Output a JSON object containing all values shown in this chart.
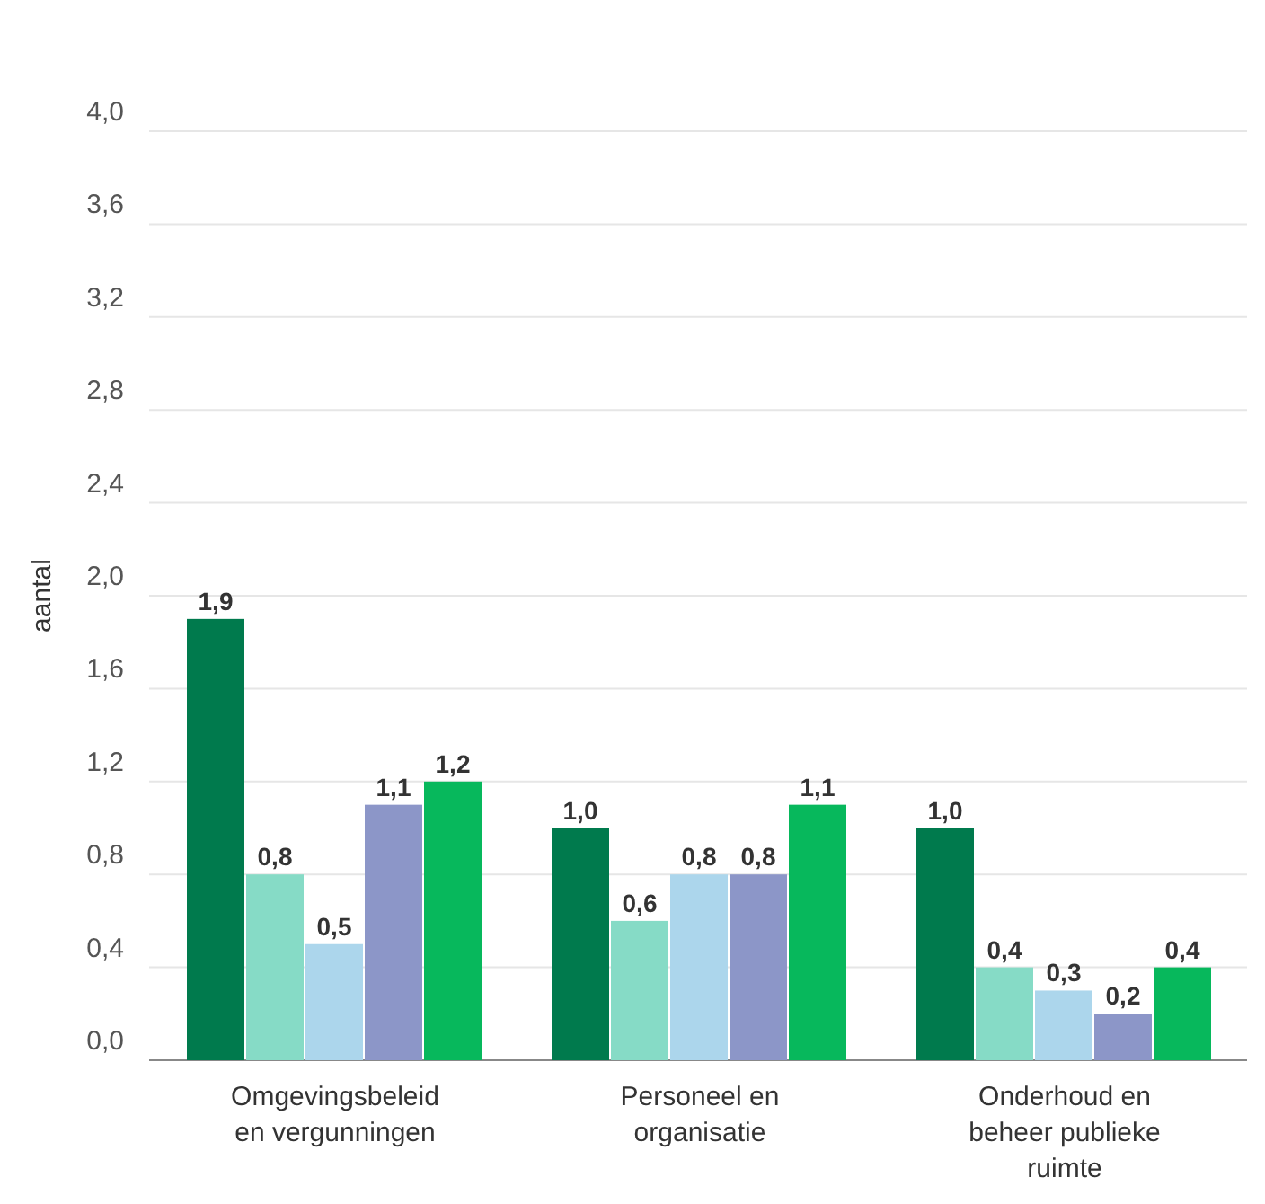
{
  "chart_data": {
    "type": "bar",
    "ylabel": "aantal",
    "categories": [
      "Omgevingsbeleid en vergunningen",
      "Personeel en organisatie",
      "Onderhoud en beheer publieke ruimte"
    ],
    "series": [
      {
        "color": "#007a4d",
        "values": [
          1.9,
          1.0,
          1.0
        ],
        "value_labels": [
          "1,9",
          "1,0",
          "1,0"
        ]
      },
      {
        "color": "#86dbc6",
        "values": [
          0.8,
          0.6,
          0.4
        ],
        "value_labels": [
          "0,8",
          "0,6",
          "0,4"
        ]
      },
      {
        "color": "#acd6ec",
        "values": [
          0.5,
          0.8,
          0.3
        ],
        "value_labels": [
          "0,5",
          "0,8",
          "0,3"
        ]
      },
      {
        "color": "#8c96c8",
        "values": [
          1.1,
          0.8,
          0.2
        ],
        "value_labels": [
          "1,1",
          "0,8",
          "0,2"
        ]
      },
      {
        "color": "#07b85c",
        "values": [
          1.2,
          1.1,
          0.4
        ],
        "value_labels": [
          "1,2",
          "1,1",
          "0,4"
        ]
      }
    ],
    "ylim": [
      0,
      4
    ],
    "yticks": [
      {
        "value": 0,
        "label": "0,0"
      },
      {
        "value": 0.4,
        "label": "0,4"
      },
      {
        "value": 0.8,
        "label": "0,8"
      },
      {
        "value": 1.2,
        "label": "1,2"
      },
      {
        "value": 1.6,
        "label": "1,6"
      },
      {
        "value": 2.0,
        "label": "2,0"
      },
      {
        "value": 2.4,
        "label": "2,4"
      },
      {
        "value": 2.8,
        "label": "2,8"
      },
      {
        "value": 3.2,
        "label": "3,2"
      },
      {
        "value": 3.6,
        "label": "3,6"
      },
      {
        "value": 4.0,
        "label": "4,0"
      }
    ],
    "grid": "y"
  }
}
